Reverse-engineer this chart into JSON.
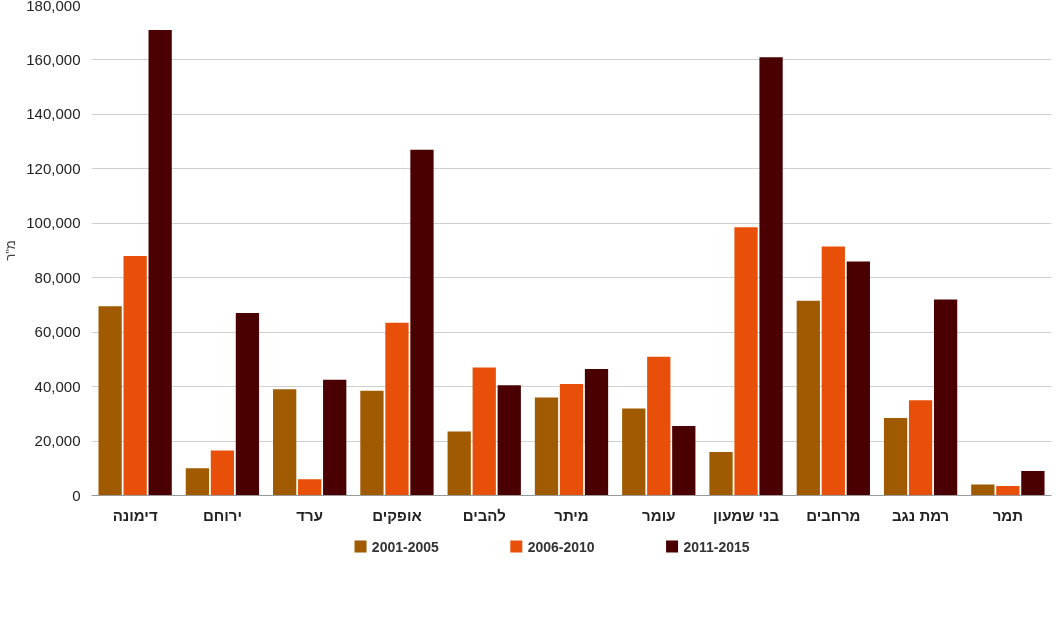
{
  "chart_data": {
    "type": "bar",
    "ylabel": "מ\"ר",
    "categories": [
      "דימונה",
      "ירוחם",
      "ערד",
      "אופקים",
      "להבים",
      "מיתר",
      "עומר",
      "בני שמעון",
      "מרחבים",
      "רמת נגב",
      "תמר"
    ],
    "series": [
      {
        "name": "2001-2005",
        "color": "#a05a00",
        "values": [
          69500,
          10000,
          39000,
          38500,
          23500,
          36000,
          32000,
          16000,
          71500,
          28500,
          4000
        ]
      },
      {
        "name": "2006-2010",
        "color": "#e8500a",
        "values": [
          88000,
          16500,
          6000,
          63500,
          47000,
          41000,
          51000,
          98500,
          91500,
          35000,
          3500
        ]
      },
      {
        "name": "2011-2015",
        "color": "#4a0000",
        "values": [
          171000,
          67000,
          42500,
          127000,
          40500,
          46500,
          25500,
          161000,
          86000,
          72000,
          9000
        ]
      }
    ],
    "ylim": [
      0,
      180000
    ],
    "yticks": [
      0,
      {
        "value": 20000,
        "label": "20,000"
      },
      {
        "value": 40000,
        "label": "40,000"
      },
      {
        "value": 60000,
        "label": "60,000"
      },
      {
        "value": 80000,
        "label": "80,000"
      },
      {
        "value": 100000,
        "label": "100,000"
      },
      {
        "value": 120000,
        "label": "120,000"
      },
      {
        "value": 140000,
        "label": "140,000"
      },
      {
        "value": 160000,
        "label": "160,000"
      },
      {
        "value": 180000,
        "label": "180,000"
      }
    ],
    "grid": "y",
    "legend": "bottom"
  }
}
